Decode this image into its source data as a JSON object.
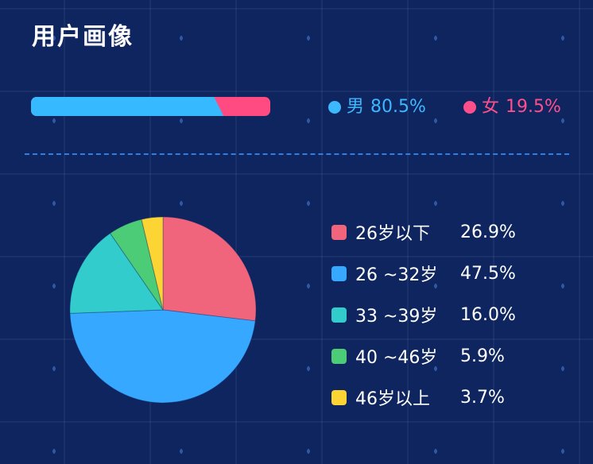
{
  "title": "用户画像",
  "gender": {
    "male": {
      "label": "男",
      "value": "80.5%",
      "fraction": 0.805,
      "color": "#3db8ff"
    },
    "female": {
      "label": "女",
      "value": "19.5%",
      "fraction": 0.195,
      "color": "#ff4f8a"
    }
  },
  "chart_data": {
    "type": "pie",
    "categories": [
      "26岁以下",
      "26 ~32岁",
      "33 ~39岁",
      "40 ~46岁",
      "46岁以上"
    ],
    "values": [
      26.9,
      47.5,
      16.0,
      5.9,
      3.7
    ],
    "value_labels": [
      "26.9%",
      "47.5%",
      "16.0%",
      "5.9%",
      "3.7%"
    ],
    "colors": [
      "#f0647c",
      "#37a8ff",
      "#33cccc",
      "#4ccc77",
      "#fcd535"
    ],
    "legend": "right"
  }
}
